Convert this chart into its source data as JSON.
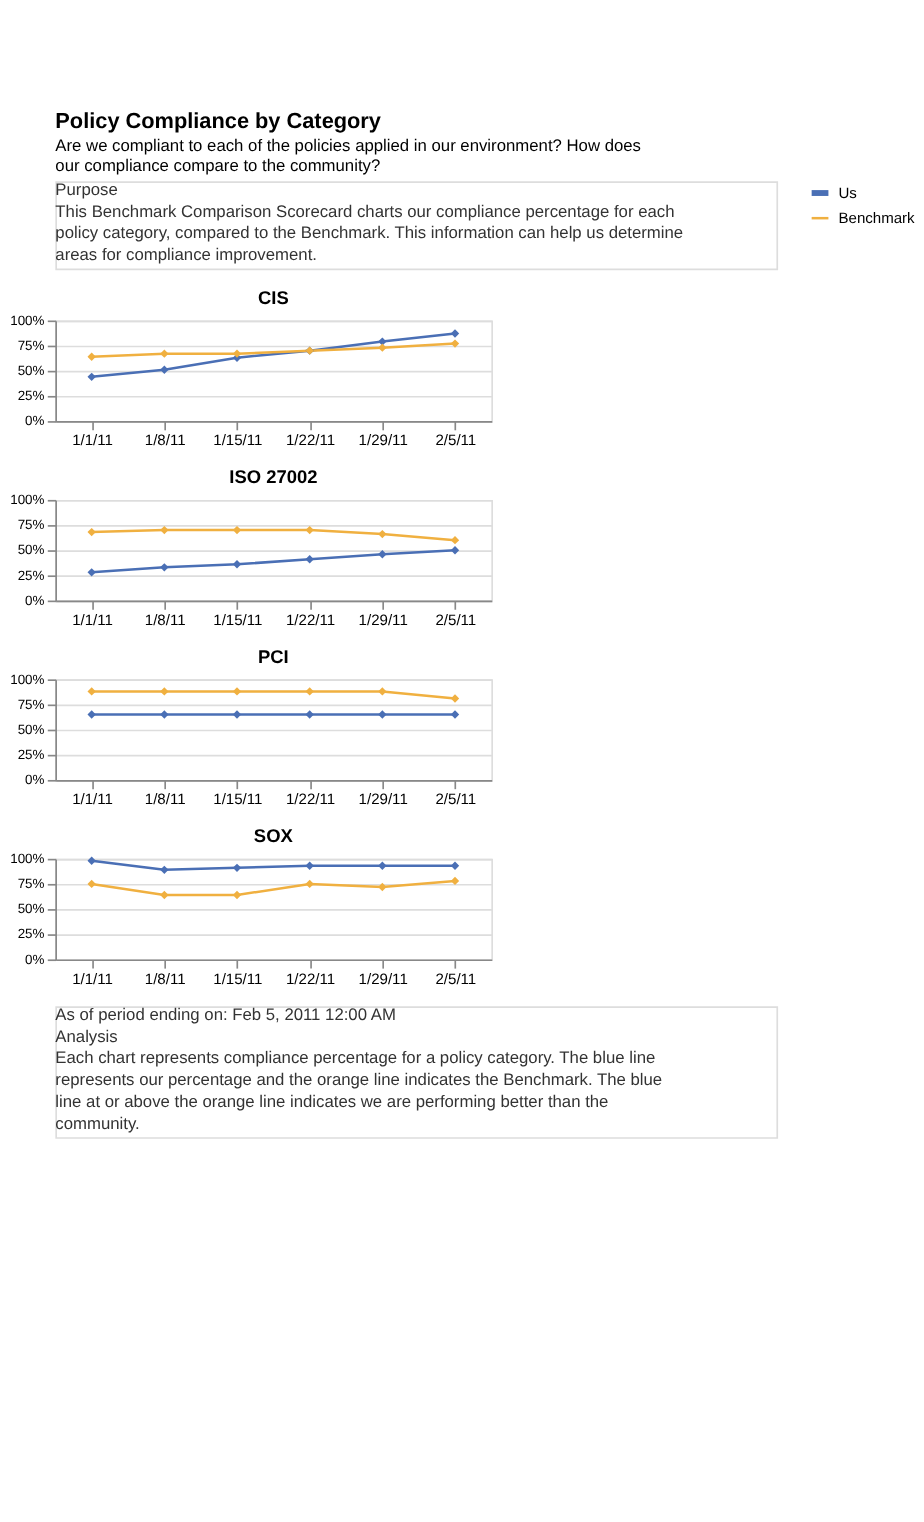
{
  "chart_data": [
    {
      "type": "other",
      "title": "Policy Compliance by Category",
      "subtitle": "Are we compliant to each of the policies applied in our environment? How does our compliance compare to the community?",
      "annotations": [
        "Purpose",
        "This Benchmark Comparison Scorecard charts our compliance percentage for each policy category, compared to the Benchmark. This information can help us determine areas for compliance improvement."
      ]
    },
    {
      "type": "line",
      "title": "CIS",
      "categories": [
        "1/1/11",
        "1/8/11",
        "1/15/11",
        "1/22/11",
        "1/29/11",
        "2/5/11"
      ],
      "ylim": [
        0,
        100
      ],
      "yticks": [
        {
          "value": 0,
          "label": "0%"
        },
        {
          "value": 25,
          "label": "25%"
        },
        {
          "value": 50,
          "label": "50%"
        },
        {
          "value": 75,
          "label": "75%"
        },
        {
          "value": 100,
          "label": "100%"
        }
      ],
      "grid": "y",
      "legend": "right",
      "marker": "diamond",
      "line_style": "solid",
      "series": [
        {
          "name": "Us",
          "color": "#4a6fb5",
          "values": [
            44,
            51,
            63,
            70,
            79,
            87
          ]
        },
        {
          "name": "Benchmark",
          "color": "#f0b040",
          "values": [
            64,
            67,
            67,
            70,
            73,
            77
          ]
        }
      ]
    },
    {
      "type": "line",
      "title": "ISO 27002",
      "categories": [
        "1/1/11",
        "1/8/11",
        "1/15/11",
        "1/22/11",
        "1/29/11",
        "2/5/11"
      ],
      "ylim": [
        0,
        100
      ],
      "yticks": [
        {
          "value": 0,
          "label": "0%"
        },
        {
          "value": 25,
          "label": "25%"
        },
        {
          "value": 50,
          "label": "50%"
        },
        {
          "value": 75,
          "label": "75%"
        },
        {
          "value": 100,
          "label": "100%"
        }
      ],
      "grid": "y",
      "legend": "right",
      "marker": "diamond",
      "line_style": "solid",
      "series": [
        {
          "name": "Us",
          "color": "#4a6fb5",
          "values": [
            28,
            33,
            36,
            41,
            46,
            50
          ]
        },
        {
          "name": "Benchmark",
          "color": "#f0b040",
          "values": [
            68,
            70,
            70,
            70,
            66,
            60
          ]
        }
      ]
    },
    {
      "type": "line",
      "title": "PCI",
      "categories": [
        "1/1/11",
        "1/8/11",
        "1/15/11",
        "1/22/11",
        "1/29/11",
        "2/5/11"
      ],
      "ylim": [
        0,
        100
      ],
      "yticks": [
        {
          "value": 0,
          "label": "0%"
        },
        {
          "value": 25,
          "label": "25%"
        },
        {
          "value": 50,
          "label": "50%"
        },
        {
          "value": 75,
          "label": "75%"
        },
        {
          "value": 100,
          "label": "100%"
        }
      ],
      "grid": "y",
      "legend": "right",
      "marker": "diamond",
      "line_style": "solid",
      "series": [
        {
          "name": "Us",
          "color": "#4a6fb5",
          "values": [
            65,
            65,
            65,
            65,
            65,
            65
          ]
        },
        {
          "name": "Benchmark",
          "color": "#f0b040",
          "values": [
            88,
            88,
            88,
            88,
            88,
            81
          ]
        }
      ]
    },
    {
      "type": "line",
      "title": "SOX",
      "categories": [
        "1/1/11",
        "1/8/11",
        "1/15/11",
        "1/22/11",
        "1/29/11",
        "2/5/11"
      ],
      "ylim": [
        0,
        100
      ],
      "yticks": [
        {
          "value": 0,
          "label": "0%"
        },
        {
          "value": 25,
          "label": "25%"
        },
        {
          "value": 50,
          "label": "50%"
        },
        {
          "value": 75,
          "label": "75%"
        },
        {
          "value": 100,
          "label": "100%"
        }
      ],
      "grid": "y",
      "legend": "right",
      "marker": "diamond",
      "line_style": "solid",
      "series": [
        {
          "name": "Us",
          "color": "#4a6fb5",
          "values": [
            98,
            89,
            91,
            93,
            93,
            93
          ]
        },
        {
          "name": "Benchmark",
          "color": "#f0b040",
          "values": [
            75,
            64,
            64,
            75,
            72,
            78
          ]
        }
      ]
    },
    {
      "type": "other",
      "annotations": [
        "As of period ending on: Feb 5, 2011 12:00 AM",
        "Analysis",
        "Each chart represents compliance percentage for a policy category. The blue line represents our percentage and the orange line indicates the Benchmark. The blue line at or above the orange line indicates we are performing better than the community."
      ]
    }
  ]
}
